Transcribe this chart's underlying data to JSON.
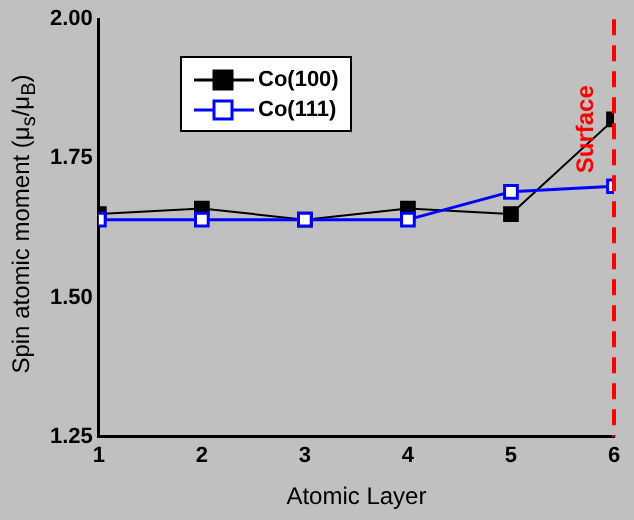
{
  "chart_data": {
    "type": "line",
    "xlabel": "Atomic Layer",
    "ylabel": "Spin atomic moment (μ$_{s}$/μ$_{B}$)",
    "x": [
      1,
      2,
      3,
      4,
      5,
      6
    ],
    "series": [
      {
        "name": "Co(100)",
        "color": "#000000",
        "values": [
          1.65,
          1.66,
          1.64,
          1.66,
          1.65,
          1.82
        ]
      },
      {
        "name": "Co(111)",
        "color": "#0000ff",
        "values": [
          1.64,
          1.64,
          1.64,
          1.64,
          1.69,
          1.7
        ]
      }
    ],
    "xlim": [
      1,
      6
    ],
    "xticks": [
      1,
      2,
      3,
      4,
      5,
      6
    ],
    "ylim": [
      1.25,
      2.0
    ],
    "yticks": [
      1.25,
      {
        "value": 1.5,
        "label": "1.50"
      },
      1.75,
      {
        "value": 2.0,
        "label": "2.00"
      }
    ],
    "ref_lines": [
      {
        "axis": "x",
        "value": 6,
        "label": "Surface",
        "color": "#ff0000",
        "line_style": "dashed"
      }
    ],
    "marker": "square",
    "line_style": "solid",
    "grid": false,
    "legend": "top left"
  }
}
